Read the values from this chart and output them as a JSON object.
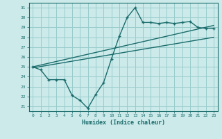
{
  "title": "",
  "xlabel": "Humidex (Indice chaleur)",
  "bg_color": "#cceaea",
  "line_color": "#1a6b6b",
  "grid_color": "#99cccc",
  "xlim": [
    -0.5,
    23.5
  ],
  "ylim": [
    20.5,
    31.5
  ],
  "xticks": [
    0,
    1,
    2,
    3,
    4,
    5,
    6,
    7,
    8,
    9,
    10,
    11,
    12,
    13,
    14,
    15,
    16,
    17,
    18,
    19,
    20,
    21,
    22,
    23
  ],
  "yticks": [
    21,
    22,
    23,
    24,
    25,
    26,
    27,
    28,
    29,
    30,
    31
  ],
  "series1_x": [
    0,
    1,
    2,
    3,
    4,
    5,
    6,
    7,
    8,
    9,
    10,
    11,
    12,
    13,
    14,
    15,
    16,
    17,
    18,
    19,
    20,
    21,
    22,
    23
  ],
  "series1_y": [
    25.0,
    24.7,
    23.7,
    23.7,
    23.7,
    22.1,
    21.6,
    20.8,
    22.2,
    23.4,
    25.8,
    28.1,
    30.0,
    31.0,
    29.5,
    29.5,
    29.4,
    29.5,
    29.4,
    29.5,
    29.6,
    29.0,
    28.9,
    28.9
  ],
  "series2_x": [
    0,
    23
  ],
  "series2_y": [
    25.0,
    29.2
  ],
  "series3_x": [
    0,
    23
  ],
  "series3_y": [
    24.9,
    28.0
  ]
}
